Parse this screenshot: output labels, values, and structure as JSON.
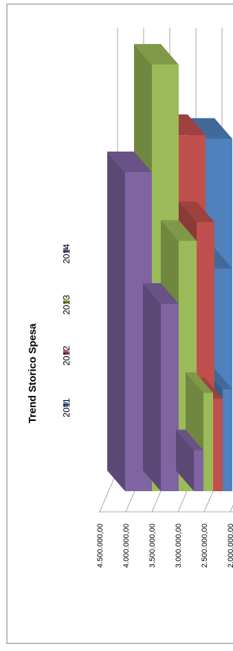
{
  "chart_data": {
    "type": "bar",
    "title": "Trend Storico Spesa",
    "categories": [
      "",
      "",
      ""
    ],
    "series": [
      {
        "name": "2011",
        "color": "#4F81BD",
        "values": [
          3900000,
          3200000,
          2550000
        ]
      },
      {
        "name": "2012",
        "color": "#C0504D",
        "values": [
          3920000,
          3450000,
          2500000
        ]
      },
      {
        "name": "2013",
        "color": "#9BBB59",
        "values": [
          4300000,
          3350000,
          2530000
        ]
      },
      {
        "name": "2014",
        "color": "#8064A2",
        "values": [
          3720000,
          3010000,
          2220000
        ]
      }
    ],
    "yticks": [
      "4.500.000,00",
      "4.000.000,00",
      "3.500.000,00",
      "3.000.000,00",
      "2.500.000,00",
      "2.000.000,00"
    ],
    "ylim": [
      2000000,
      4500000
    ],
    "grid": true,
    "legend_position": "top",
    "orientation": "rotated-90"
  }
}
